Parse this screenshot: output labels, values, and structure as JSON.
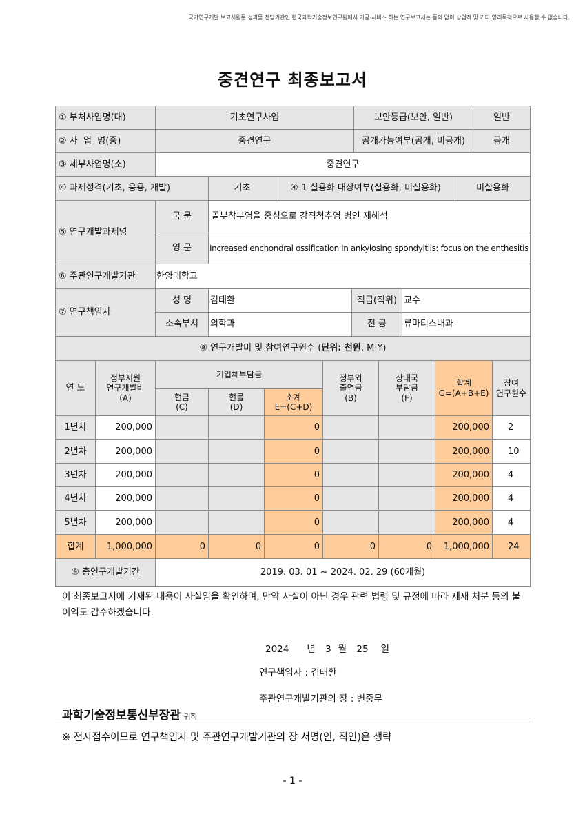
{
  "notice": "국가연구개발 보고서원문 성과물 전담기관인 한국과학기술정보연구원에서 가공·서비스 하는 연구보고서는 동의 없이 상업적 및 기타 영리목적으로 사용할 수 없습니다.",
  "title": "중견연구 최종보고서",
  "info": {
    "r1_label": "① 부처사업명(대)",
    "r1_value": "기초연구사업",
    "r1_label2": "보안등급(보안, 일반)",
    "r1_value2": "일반",
    "r2_label": "② 사  업  명(중)",
    "r2_value": "중견연구",
    "r2_label2": "공개가능여부(공개, 비공개)",
    "r2_value2": "공개",
    "r3_label": "③ 세부사업명(소)",
    "r3_value": "중견연구",
    "r4_label": "④ 과제성격(기초, 응용, 개발)",
    "r4_value": "기초",
    "r4_label2": "④-1 실용화 대상여부(실용화, 비실용화)",
    "r4_value2": "비실용화",
    "r5_label": "⑤ 연구개발과제명",
    "r5_ko_label": "국 문",
    "r5_ko_value": "골부착부염을 중심으로 강직척추염 병인 재해석",
    "r5_en_label": "영 문",
    "r5_en_value": "Increased enchondral ossification in ankylosing spondyltiis: focus on the enthesitis",
    "r6_label": "⑥ 주관연구개발기관",
    "r6_value": "한양대학교",
    "r7_label": "⑦ 연구책임자",
    "name_label": "성 명",
    "name_value": "김태환",
    "rank_label": "직급(직위)",
    "rank_value": "교수",
    "dept_label": "소속부서",
    "dept_value": "의학과",
    "major_label": "전 공",
    "major_value": "류마티스내과"
  },
  "budget": {
    "title_prefix": "⑧ 연구개발비 및 참여연구원수 (",
    "title_unit": "단위: 천원",
    "title_suffix": ", M·Y)",
    "headers": {
      "year": "연 도",
      "gov": "정부지원\n연구개발비\n(A)",
      "company": "기업체부담금",
      "cash": "현금\n(C)",
      "kind": "현물\n(D)",
      "subtotal": "소계\nE=(C+D)",
      "nongov": "정부외\n출연금\n(B)",
      "partner": "상대국\n부담금\n(F)",
      "total": "합계\nG=(A+B+E)",
      "researchers": "참여\n연구원수"
    },
    "rows": [
      {
        "year": "1년차",
        "gov": "200,000",
        "cash": "",
        "kind": "",
        "subtotal": "0",
        "nongov": "",
        "partner": "",
        "total": "200,000",
        "researchers": "2"
      },
      {
        "year": "2년차",
        "gov": "200,000",
        "cash": "",
        "kind": "",
        "subtotal": "0",
        "nongov": "",
        "partner": "",
        "total": "200,000",
        "researchers": "10"
      },
      {
        "year": "3년차",
        "gov": "200,000",
        "cash": "",
        "kind": "",
        "subtotal": "0",
        "nongov": "",
        "partner": "",
        "total": "200,000",
        "researchers": "4"
      },
      {
        "year": "4년차",
        "gov": "200,000",
        "cash": "",
        "kind": "",
        "subtotal": "0",
        "nongov": "",
        "partner": "",
        "total": "200,000",
        "researchers": "4"
      },
      {
        "year": "5년차",
        "gov": "200,000",
        "cash": "",
        "kind": "",
        "subtotal": "0",
        "nongov": "",
        "partner": "",
        "total": "200,000",
        "researchers": "4"
      }
    ],
    "sum": {
      "year": "합계",
      "gov": "1,000,000",
      "cash": "0",
      "kind": "0",
      "subtotal": "0",
      "nongov": "0",
      "partner": "0",
      "total": "1,000,000",
      "researchers": "24"
    }
  },
  "period": {
    "label": "⑨ 총연구개발기간",
    "value": "2019. 03. 01 ~ 2024. 02. 29 (60개월)"
  },
  "declaration": "이 최종보고서에 기재된 내용이 사실임을 확인하며, 만약 사실이 아닌 경우 관련 법령 및 규정에 따라 제재 처분 등의 불이익도 감수하겠습니다.",
  "date": {
    "year": "2024",
    "year_unit": "년",
    "month": "3",
    "month_unit": "월",
    "day": "25",
    "day_unit": "일"
  },
  "signers": {
    "pi": "연구책임자 : 김태환",
    "head": "주관연구개발기관의 장 : 변중무"
  },
  "recipient": {
    "name": "과학기술정보통신부장관",
    "suffix": "귀하"
  },
  "footnote": "※ 전자접수이므로 연구책임자 및 주관연구개발기관의 장 서명(인, 직인)은 생략",
  "page_number": "- 1 -",
  "colors": {
    "header_gray": "#e6e6e6",
    "highlight_orange": "#fdcc9a"
  }
}
